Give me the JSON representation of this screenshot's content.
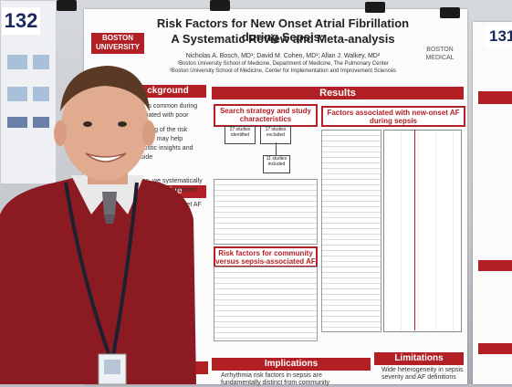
{
  "poster": {
    "number_left": "132",
    "number_right": "131",
    "title_line1": "Risk Factors for New Onset Atrial Fibrillation during Sepsis:",
    "title_line2": "A Systematic Review and Meta-analysis",
    "authors": "Nicholas A. Bosch, MD¹; David M. Cohen, MD¹; Allan J. Walkey, MD²",
    "affiliation1": "¹Boston University School of Medicine, Department of Medicine, The Pulmonary Center",
    "affiliation2": "²Boston University School of Medicine, Center for Implementation and Improvement Sciences",
    "logo_left_line1": "BOSTON",
    "logo_left_line2": "UNIVERSITY",
    "logo_right_line1": "BOSTON",
    "logo_right_line2": "MEDICAL",
    "sections": {
      "background": "ckground",
      "objective": "jective",
      "results": "Results",
      "implications": "Implications",
      "limitations": "Limitations"
    },
    "boxes": {
      "search": "Search strategy and study characteristics",
      "factors": "Factors associated with new-onset AF during sepsis",
      "community": "Risk factors for community versus sepsis-associated AF"
    },
    "flow": {
      "box1": "27 studies identified",
      "box2": "17 studies excluded",
      "box3": "11 studies included"
    },
    "snippets": {
      "bg1": "AF is common during",
      "bg2": "sociated with poor",
      "bg3": "tanding of the risk",
      "bg4": "set AF may help",
      "bg5": "gnostic insights and guide",
      "bg6": "mes, we systematically",
      "bg7": "ial factors associated with",
      "obj1": "new-onset AF",
      "obj2": "itialize",
      "impl1": "Arrhythmia risk factors in sepsis are",
      "impl2": "fundamentally distinct from community",
      "lim1": "Wide heterogeneity in sepsis",
      "lim2": "severity and AF definitions"
    }
  }
}
